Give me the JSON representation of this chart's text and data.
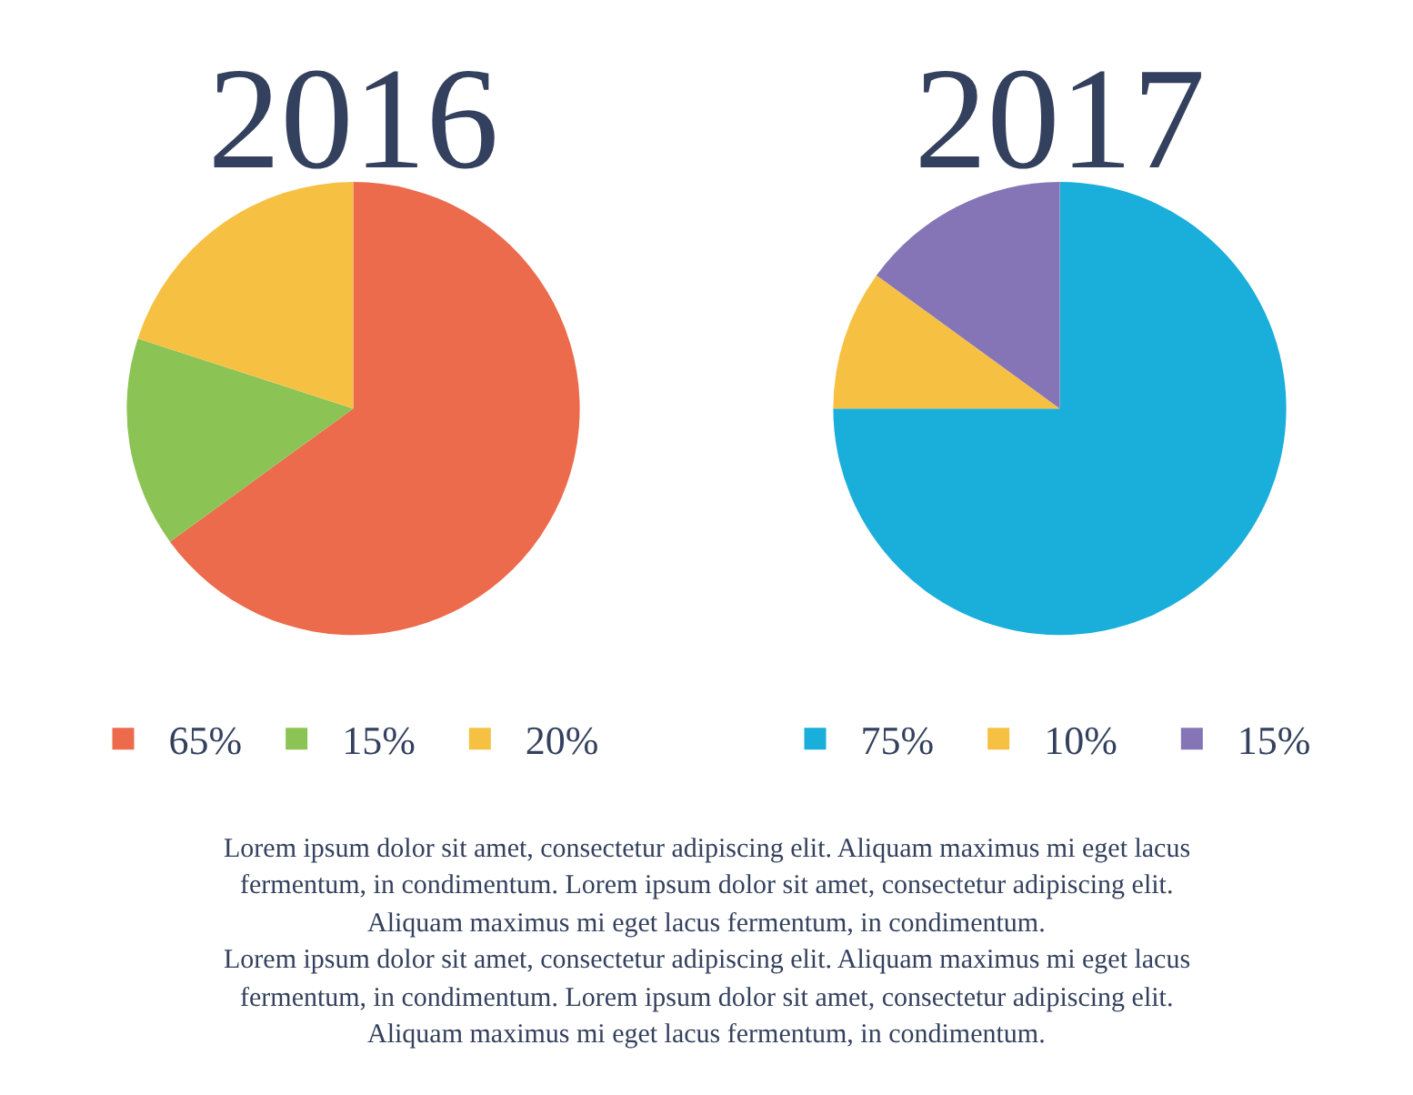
{
  "chart_data": [
    {
      "type": "pie",
      "title": "2016",
      "categories": [
        "65%",
        "15%",
        "20%"
      ],
      "values": [
        65,
        15,
        20
      ],
      "colors": [
        "#ec6b4c",
        "#8bc455",
        "#f6c143"
      ],
      "legend": "bottom"
    },
    {
      "type": "pie",
      "title": "2017",
      "categories": [
        "75%",
        "10%",
        "15%"
      ],
      "values": [
        75,
        10,
        15
      ],
      "colors": [
        "#1aaedb",
        "#f6c143",
        "#8675b6"
      ],
      "legend": "bottom"
    },
    {
      "type": "other",
      "annotations": [
        "Lorem ipsum dolor sit amet, consectetur adipiscing elit. Aliquam maximus mi eget lacus",
        "fermentum, in condimentum. Lorem ipsum dolor sit amet, consectetur adipiscing elit.",
        "Aliquam maximus mi eget lacus fermentum, in condimentum.",
        "Lorem ipsum dolor sit amet, consectetur adipiscing elit. Aliquam maximus mi eget lacus",
        "fermentum, in condimentum. Lorem ipsum dolor sit amet, consectetur adipiscing elit.",
        "Aliquam maximus mi eget lacus fermentum, in condimentum."
      ]
    }
  ]
}
